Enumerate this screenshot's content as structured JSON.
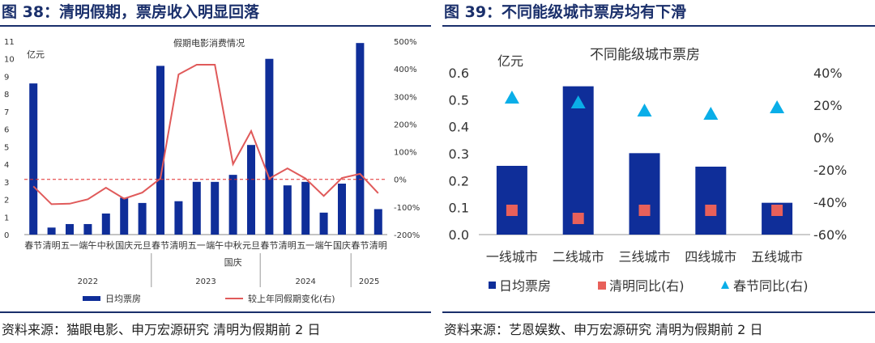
{
  "colors": {
    "bar": "#0f2e99",
    "line": "#e05a5a",
    "dashed": "#e02a2a",
    "square": "#e8605a",
    "triangle": "#0aaee8",
    "title": "#1a2f6b"
  },
  "left": {
    "title": "图 38：清明假期，票房收入明显回落",
    "source": "资料来源：猫眼电影、申万宏源研究 清明为假期前 2 日",
    "chart_data": {
      "type": "bar+line",
      "title": "假期电影消费情况",
      "unit_label": "亿元",
      "categories": [
        "春节",
        "清明",
        "五一",
        "端午",
        "中秋",
        "国庆",
        "元旦",
        "春节",
        "清明",
        "五一",
        "端午",
        "中秋",
        "元旦",
        "春节",
        "清明",
        "五一",
        "端午",
        "国庆",
        "春节",
        "清明"
      ],
      "category_extra": {
        "11": "国庆"
      },
      "year_groups": [
        {
          "label": "2022",
          "start": 0,
          "end": 6
        },
        {
          "label": "2023",
          "start": 7,
          "end": 12
        },
        {
          "label": "2024",
          "start": 13,
          "end": 17
        },
        {
          "label": "2025",
          "start": 18,
          "end": 19
        }
      ],
      "series": [
        {
          "name": "日均票房",
          "axis": "left",
          "kind": "bar",
          "values": [
            8.6,
            0.4,
            0.6,
            0.6,
            1.2,
            2.1,
            1.8,
            9.6,
            1.9,
            3.0,
            3.0,
            3.4,
            5.1,
            10.0,
            2.8,
            3.0,
            1.25,
            2.9,
            10.9,
            1.45
          ]
        },
        {
          "name": "较上年同假期变化(右)",
          "axis": "right",
          "kind": "line",
          "values": [
            -25,
            -90,
            -88,
            -72,
            -30,
            -70,
            -48,
            3,
            380,
            415,
            415,
            55,
            175,
            3,
            40,
            3,
            -60,
            5,
            20,
            -50
          ]
        }
      ],
      "left_axis": {
        "min": 0,
        "max": 11,
        "ticks": [
          "0",
          "1",
          "2",
          "3",
          "4",
          "5",
          "6",
          "7",
          "8",
          "9",
          "10",
          "11"
        ]
      },
      "right_axis": {
        "min": -200,
        "max": 500,
        "ticks": [
          "-200%",
          "-100%",
          "0%",
          "100%",
          "200%",
          "300%",
          "400%",
          "500%"
        ]
      },
      "zero_line": 0,
      "legend": [
        "日均票房",
        "较上年同假期变化(右)"
      ]
    }
  },
  "right": {
    "title": "图 39：不同能级城市票房均有下滑",
    "source": "资料来源：艺恩娱数、申万宏源研究 清明为假期前 2 日",
    "chart_data": {
      "type": "bar+scatter",
      "title": "不同能级城市票房",
      "unit_label": "亿元",
      "categories": [
        "一线城市",
        "二线城市",
        "三线城市",
        "四线城市",
        "五线城市"
      ],
      "series": [
        {
          "name": "日均票房",
          "axis": "left",
          "kind": "bar",
          "values": [
            0.255,
            0.55,
            0.302,
            0.252,
            0.118
          ]
        },
        {
          "name": "清明同比(右)",
          "axis": "right",
          "kind": "square",
          "values": [
            -45,
            -50,
            -45,
            -45,
            -45
          ]
        },
        {
          "name": "春节同比(右)",
          "axis": "right",
          "kind": "triangle",
          "values": [
            25,
            22,
            17,
            15,
            19
          ]
        }
      ],
      "left_axis": {
        "min": 0,
        "max": 0.6,
        "ticks": [
          "0.0",
          "0.1",
          "0.2",
          "0.3",
          "0.4",
          "0.5",
          "0.6"
        ]
      },
      "right_axis": {
        "min": -60,
        "max": 40,
        "ticks": [
          "-60%",
          "-40%",
          "-20%",
          "0%",
          "20%",
          "40%"
        ]
      },
      "legend": [
        "日均票房",
        "清明同比(右)",
        "春节同比(右)"
      ]
    }
  }
}
